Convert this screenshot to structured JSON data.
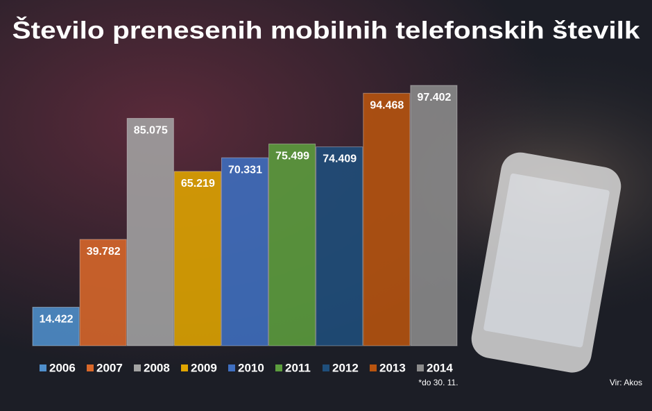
{
  "chart_data": {
    "type": "bar",
    "title": "Število prenesenih mobilnih telefonskih številk",
    "categories": [
      "2006",
      "2007",
      "2008",
      "2009",
      "2010",
      "2011",
      "2012",
      "2013",
      "2014"
    ],
    "values": [
      14422,
      39782,
      85075,
      65219,
      70331,
      75499,
      74409,
      94468,
      97402
    ],
    "value_labels": [
      "14.422",
      "39.782",
      "85.075",
      "65.219",
      "70.331",
      "75.499",
      "74.409",
      "94.468",
      "97.402"
    ],
    "colors": [
      "#4f8fcc",
      "#d9682a",
      "#a3a3a3",
      "#e0a500",
      "#3f6fc0",
      "#5c9e3e",
      "#1f4f7c",
      "#b8540f",
      "#8c8c8c"
    ],
    "ylim": [
      0,
      100000
    ],
    "footnote": "*do 30. 11.",
    "source": "Vir: Akos"
  }
}
